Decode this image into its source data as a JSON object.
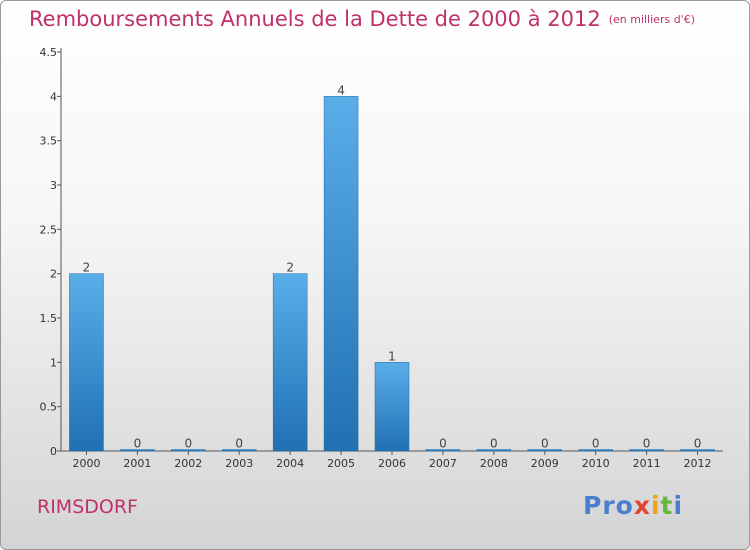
{
  "header": {
    "title": "Remboursements Annuels de la Dette de 2000 à 2012",
    "unit": "(en milliers d'€)"
  },
  "footer": {
    "commune": "RIMSDORF",
    "logo": {
      "p1": "Pro",
      "p2": "x",
      "p3": "i",
      "p4": "t",
      "p5": "i"
    }
  },
  "colors": {
    "bar_top": "#5aaee8",
    "bar_bottom": "#2070b4",
    "title": "#c0306a"
  },
  "chart_data": {
    "type": "bar",
    "title": "Remboursements Annuels de la Dette de 2000 à 2012",
    "xlabel": "",
    "ylabel": "",
    "categories": [
      "2000",
      "2001",
      "2002",
      "2003",
      "2004",
      "2005",
      "2006",
      "2007",
      "2008",
      "2009",
      "2010",
      "2011",
      "2012"
    ],
    "values": [
      2,
      0,
      0,
      0,
      2,
      4,
      1,
      0,
      0,
      0,
      0,
      0,
      0
    ],
    "labels": [
      "2",
      "0",
      "0",
      "0",
      "2",
      "4",
      "1",
      "0",
      "0",
      "0",
      "0",
      "0",
      "0"
    ],
    "ylim": [
      0,
      4.5
    ],
    "yticks": [
      0,
      0.5,
      1,
      1.5,
      2,
      2.5,
      3,
      3.5,
      4,
      4.5
    ],
    "ytick_labels": [
      "0",
      "0.5",
      "1",
      "1.5",
      "2",
      "2.5",
      "3",
      "3.5",
      "4",
      "4.5"
    ]
  }
}
